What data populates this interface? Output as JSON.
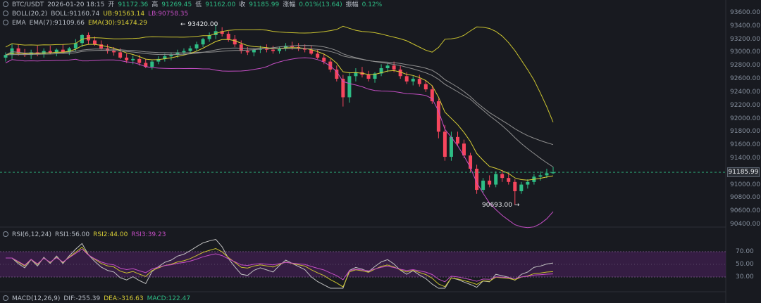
{
  "header": {
    "symbol": "BTC/USDT",
    "time": "2026-01-20 18:15",
    "open_label": "开",
    "open": "91172.36",
    "high_label": "高",
    "high": "91269.45",
    "low_label": "低",
    "low": "91162.00",
    "close_label": "收",
    "close": "91185.99",
    "change_label": "涨幅",
    "change": "0.01%(13.64)",
    "amp_label": "振幅",
    "amp": "0.12%"
  },
  "boll": {
    "name": "BOLL(20,2)",
    "mid": "BOLL:91160.74",
    "ub": "UB:91563.14",
    "lb": "LB:90758.35"
  },
  "ema": {
    "name": "EMA",
    "ema7": "EMA(7):91109.66",
    "ema30": "EMA(30):91474.29"
  },
  "rsi": {
    "name": "RSI(6,12,24)",
    "rsi1": "RSI1:56.00",
    "rsi2": "RSI2:44.00",
    "rsi3": "RSI3:39.23"
  },
  "macd": {
    "name": "MACD(12,26,9)",
    "dif": "DIF:-255.39",
    "dea": "DEA:-316.63",
    "macd": "MACD:122.47"
  },
  "annotations": {
    "high": "93420.00",
    "low": "90693.00",
    "current_price": "91185.99"
  },
  "price_axis": [
    "93600.00",
    "93400.00",
    "93200.00",
    "93000.00",
    "92800.00",
    "92600.00",
    "92400.00",
    "92200.00",
    "92000.00",
    "91800.00",
    "91600.00",
    "91400.00",
    "91000.00",
    "90800.00",
    "90600.00",
    "90400.00"
  ],
  "rsi_axis": [
    "70.00",
    "50.00",
    "30.00"
  ],
  "colors": {
    "up": "#2ebd85",
    "down": "#f6465d",
    "boll_up": "#c9c22f",
    "boll_mid": "#8f8f8f",
    "boll_low": "#c44ec4",
    "rsi_band": "#3b1f4a"
  },
  "chart_data": {
    "type": "candlestick",
    "price_range": [
      90400,
      93600
    ],
    "candles": [
      [
        92920,
        93000,
        92860,
        92960
      ],
      [
        92960,
        93120,
        92900,
        93060
      ],
      [
        93060,
        93120,
        92950,
        92980
      ],
      [
        92980,
        93050,
        92930,
        92960
      ],
      [
        92960,
        93040,
        92900,
        93000
      ],
      [
        93000,
        93100,
        92940,
        92970
      ],
      [
        92970,
        93060,
        92920,
        93020
      ],
      [
        93020,
        93100,
        92970,
        92990
      ],
      [
        92990,
        93060,
        92940,
        93040
      ],
      [
        93040,
        93120,
        92990,
        93000
      ],
      [
        93000,
        93080,
        92960,
        93060
      ],
      [
        93060,
        93200,
        93010,
        93140
      ],
      [
        93140,
        93280,
        93080,
        93260
      ],
      [
        93260,
        93300,
        93120,
        93180
      ],
      [
        93180,
        93240,
        93100,
        93120
      ],
      [
        93120,
        93180,
        93040,
        93060
      ],
      [
        93060,
        93120,
        92980,
        93020
      ],
      [
        93020,
        93080,
        92950,
        93000
      ],
      [
        93000,
        93060,
        92900,
        92920
      ],
      [
        92920,
        92980,
        92840,
        92880
      ],
      [
        92880,
        92950,
        92820,
        92900
      ],
      [
        92900,
        92960,
        92800,
        92840
      ],
      [
        92840,
        92900,
        92760,
        92780
      ],
      [
        92780,
        92880,
        92740,
        92860
      ],
      [
        92860,
        92940,
        92820,
        92900
      ],
      [
        92900,
        92980,
        92860,
        92940
      ],
      [
        92940,
        93000,
        92880,
        92960
      ],
      [
        92960,
        93040,
        92920,
        93000
      ],
      [
        93000,
        93060,
        92960,
        93020
      ],
      [
        93020,
        93100,
        92980,
        93060
      ],
      [
        93060,
        93160,
        93020,
        93120
      ],
      [
        93120,
        93220,
        93080,
        93200
      ],
      [
        93200,
        93300,
        93160,
        93260
      ],
      [
        93260,
        93420,
        93200,
        93320
      ],
      [
        93320,
        93380,
        93240,
        93280
      ],
      [
        93280,
        93320,
        93160,
        93200
      ],
      [
        93200,
        93260,
        93080,
        93120
      ],
      [
        93120,
        93180,
        92980,
        93020
      ],
      [
        93020,
        93080,
        92960,
        93000
      ],
      [
        93000,
        93060,
        92940,
        93040
      ],
      [
        93040,
        93100,
        92990,
        93060
      ],
      [
        93060,
        93120,
        93000,
        93040
      ],
      [
        93040,
        93100,
        92980,
        93020
      ],
      [
        93020,
        93090,
        92980,
        93060
      ],
      [
        93060,
        93140,
        93020,
        93100
      ],
      [
        93100,
        93160,
        93040,
        93080
      ],
      [
        93080,
        93140,
        93020,
        93060
      ],
      [
        93060,
        93120,
        93000,
        93040
      ],
      [
        93040,
        93100,
        92960,
        92980
      ],
      [
        92980,
        93040,
        92900,
        92920
      ],
      [
        92920,
        92980,
        92820,
        92860
      ],
      [
        92860,
        92900,
        92700,
        92740
      ],
      [
        92740,
        92800,
        92560,
        92600
      ],
      [
        92600,
        92660,
        92180,
        92320
      ],
      [
        92320,
        92700,
        92240,
        92640
      ],
      [
        92640,
        92760,
        92560,
        92700
      ],
      [
        92700,
        92780,
        92620,
        92660
      ],
      [
        92660,
        92720,
        92560,
        92600
      ],
      [
        92600,
        92700,
        92540,
        92680
      ],
      [
        92680,
        92820,
        92640,
        92760
      ],
      [
        92760,
        92840,
        92700,
        92800
      ],
      [
        92800,
        92860,
        92700,
        92740
      ],
      [
        92740,
        92800,
        92600,
        92640
      ],
      [
        92640,
        92700,
        92520,
        92560
      ],
      [
        92560,
        92640,
        92500,
        92600
      ],
      [
        92600,
        92660,
        92480,
        92520
      ],
      [
        92520,
        92580,
        92400,
        92440
      ],
      [
        92440,
        92500,
        92220,
        92260
      ],
      [
        92260,
        92300,
        91700,
        91800
      ],
      [
        91800,
        91900,
        91360,
        91420
      ],
      [
        91420,
        91800,
        91360,
        91720
      ],
      [
        91720,
        91800,
        91580,
        91620
      ],
      [
        91620,
        91680,
        91400,
        91440
      ],
      [
        91440,
        91480,
        91180,
        91240
      ],
      [
        91240,
        91300,
        90860,
        90920
      ],
      [
        90920,
        91100,
        90880,
        91060
      ],
      [
        91060,
        91140,
        90960,
        91000
      ],
      [
        91000,
        91200,
        90960,
        91160
      ],
      [
        91160,
        91220,
        91040,
        91100
      ],
      [
        91100,
        91180,
        91000,
        91040
      ],
      [
        91040,
        91080,
        90693,
        90900
      ],
      [
        90900,
        91040,
        90860,
        91000
      ],
      [
        91000,
        91080,
        90940,
        91040
      ],
      [
        91040,
        91160,
        91000,
        91120
      ],
      [
        91120,
        91200,
        91060,
        91140
      ],
      [
        91140,
        91240,
        91100,
        91172
      ],
      [
        91172,
        91269,
        91162,
        91186
      ]
    ]
  }
}
